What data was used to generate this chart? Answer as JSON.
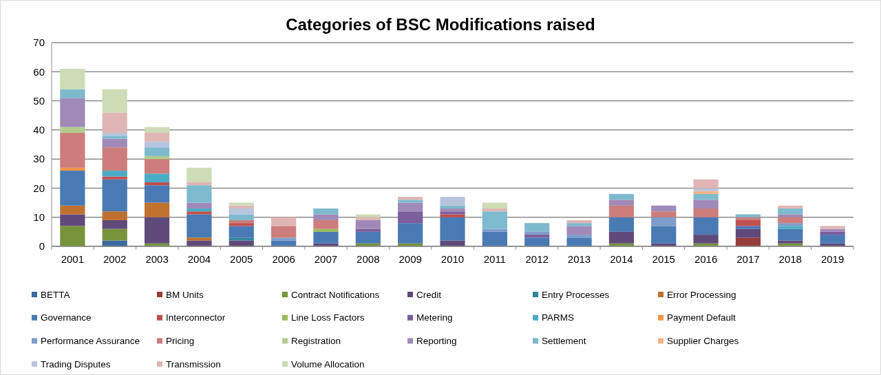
{
  "chart_data": {
    "type": "bar",
    "title": "Categories of BSC Modifications raised",
    "stacked": true,
    "categories": [
      "2001",
      "2002",
      "2003",
      "2004",
      "2005",
      "2006",
      "2007",
      "2008",
      "2009",
      "2010",
      "2011",
      "2012",
      "2013",
      "2014",
      "2015",
      "2016",
      "2017",
      "2018",
      "2019"
    ],
    "ylim": [
      0,
      70
    ],
    "yticks": [
      0,
      10,
      20,
      30,
      40,
      50,
      60,
      70
    ],
    "grid": "y",
    "legend": "bottom",
    "series": [
      {
        "name": "BETTA",
        "color": "#3c6aa0",
        "values": [
          0,
          2,
          0,
          0,
          0,
          0,
          0,
          0,
          0,
          0,
          0,
          0,
          0,
          0,
          0,
          0,
          0,
          0,
          0
        ]
      },
      {
        "name": "BM Units",
        "color": "#963c3a",
        "values": [
          0,
          0,
          0,
          0,
          0,
          0,
          0,
          0,
          0,
          0,
          0,
          0,
          0,
          0,
          0,
          0,
          3,
          0,
          0
        ]
      },
      {
        "name": "Contract Notifications",
        "color": "#77933c",
        "values": [
          7,
          4,
          1,
          0,
          0,
          0,
          0,
          1,
          1,
          0,
          0,
          0,
          0,
          1,
          0,
          1,
          0,
          1,
          0
        ]
      },
      {
        "name": "Credit",
        "color": "#604a7b",
        "values": [
          4,
          3,
          9,
          2,
          2,
          0,
          1,
          0,
          0,
          2,
          0,
          0,
          0,
          4,
          1,
          3,
          3,
          1,
          1
        ]
      },
      {
        "name": "Entry Processes",
        "color": "#31859c",
        "values": [
          0,
          0,
          0,
          0,
          1,
          0,
          0,
          0,
          0,
          0,
          0,
          0,
          0,
          0,
          0,
          0,
          0,
          0,
          0
        ]
      },
      {
        "name": "Error Processing",
        "color": "#c0712e",
        "values": [
          3,
          3,
          5,
          1,
          0,
          0,
          0,
          0,
          0,
          0,
          0,
          0,
          0,
          0,
          0,
          0,
          0,
          0,
          0
        ]
      },
      {
        "name": "Governance",
        "color": "#4a7ab4",
        "values": [
          12,
          11,
          6,
          8,
          4,
          2,
          4,
          4,
          7,
          8,
          5,
          3,
          3,
          5,
          6,
          6,
          1,
          4,
          3
        ]
      },
      {
        "name": "Interconnector",
        "color": "#c0504d",
        "values": [
          0,
          1,
          1,
          1,
          1,
          0,
          0,
          0,
          0,
          1,
          0,
          0,
          0,
          0,
          0,
          0,
          2,
          0,
          0
        ]
      },
      {
        "name": "Line Loss Factors",
        "color": "#9bbb59",
        "values": [
          0,
          0,
          0,
          0,
          0,
          0,
          1,
          0,
          0,
          0,
          0,
          0,
          0,
          0,
          0,
          0,
          0,
          0,
          0
        ]
      },
      {
        "name": "Metering",
        "color": "#7b5e9c",
        "values": [
          0,
          0,
          0,
          0,
          0,
          0,
          0,
          1,
          4,
          1,
          0,
          1,
          0,
          0,
          0,
          0,
          0,
          0,
          1
        ]
      },
      {
        "name": "PARMS",
        "color": "#4bacc6",
        "values": [
          0,
          2,
          3,
          1,
          0,
          0,
          0,
          0,
          0,
          0,
          0,
          0,
          0,
          0,
          0,
          0,
          0,
          1,
          0
        ]
      },
      {
        "name": "Payment Default",
        "color": "#f79646",
        "values": [
          1,
          0,
          0,
          0,
          0,
          0,
          0,
          0,
          0,
          0,
          0,
          0,
          0,
          0,
          0,
          0,
          0,
          0,
          0
        ]
      },
      {
        "name": "Performance Assurance",
        "color": "#7f9dcb",
        "values": [
          0,
          0,
          0,
          0,
          0,
          1,
          0,
          0,
          0,
          0,
          1,
          1,
          1,
          0,
          3,
          0,
          0,
          1,
          0
        ]
      },
      {
        "name": "Pricing",
        "color": "#cd7d7b",
        "values": [
          12,
          8,
          5,
          0,
          1,
          4,
          3,
          0,
          0,
          0,
          0,
          0,
          0,
          4,
          2,
          3,
          1,
          2,
          0
        ]
      },
      {
        "name": "Registration",
        "color": "#b3cd8f",
        "values": [
          2,
          0,
          1,
          0,
          0,
          0,
          0,
          0,
          0,
          0,
          0,
          0,
          0,
          0,
          0,
          0,
          0,
          0,
          0
        ]
      },
      {
        "name": "Reporting",
        "color": "#a08ab8",
        "values": [
          10,
          3,
          0,
          2,
          0,
          0,
          2,
          3,
          3,
          1,
          0,
          0,
          3,
          2,
          2,
          3,
          0,
          1,
          1
        ]
      },
      {
        "name": "Settlement",
        "color": "#7ebacd",
        "values": [
          3,
          1,
          3,
          6,
          2,
          0,
          2,
          0,
          1,
          1,
          6,
          3,
          1,
          2,
          0,
          2,
          1,
          2,
          0
        ]
      },
      {
        "name": "Supplier Charges",
        "color": "#f9b384",
        "values": [
          0,
          0,
          0,
          0,
          0,
          0,
          0,
          0,
          0,
          0,
          0,
          0,
          0,
          0,
          0,
          1,
          0,
          0,
          0
        ]
      },
      {
        "name": "Trading Disputes",
        "color": "#b7c4de",
        "values": [
          0,
          1,
          2,
          0,
          2,
          0,
          0,
          0,
          0,
          3,
          0,
          0,
          0,
          0,
          0,
          1,
          0,
          0,
          0
        ]
      },
      {
        "name": "Transmission",
        "color": "#dfb6b5",
        "values": [
          0,
          7,
          3,
          1,
          1,
          3,
          0,
          1,
          1,
          0,
          1,
          0,
          1,
          0,
          0,
          3,
          0,
          1,
          1
        ]
      },
      {
        "name": "Volume Allocation",
        "color": "#cedcb7",
        "values": [
          7,
          8,
          2,
          5,
          1,
          0,
          0,
          1,
          0,
          0,
          2,
          0,
          0,
          0,
          0,
          0,
          0,
          0,
          0
        ]
      }
    ]
  }
}
